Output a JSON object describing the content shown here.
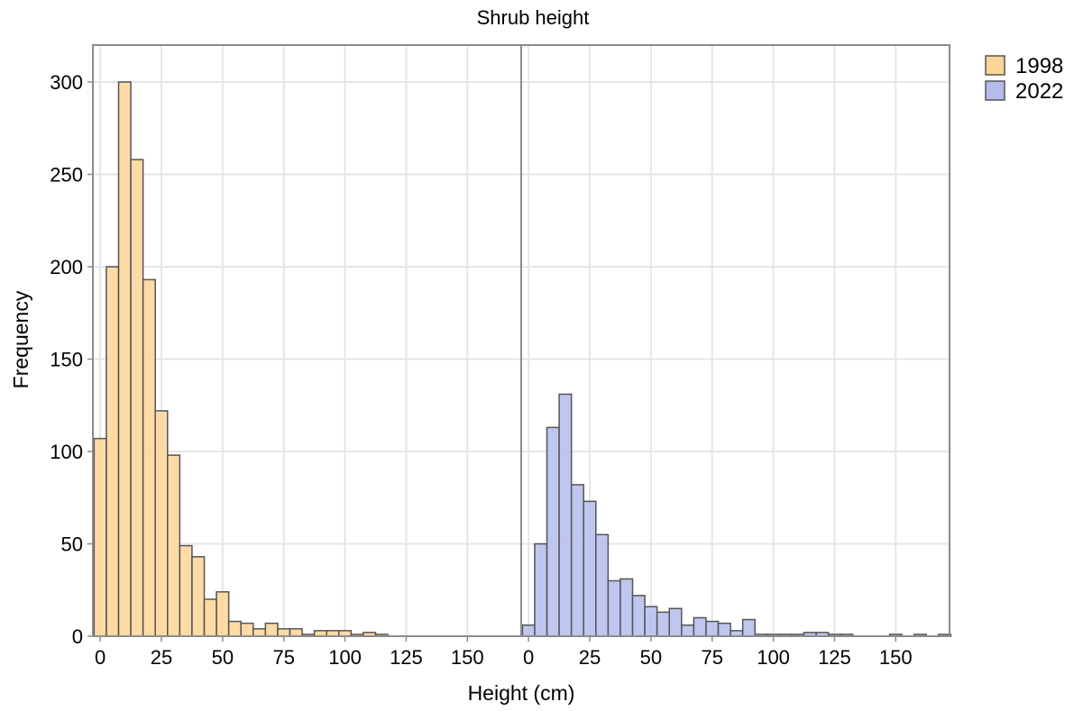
{
  "chart_data": {
    "type": "bar",
    "title": "Shrub height",
    "xlabel": "Height (cm)",
    "ylabel": "Frequency",
    "ylim": [
      0,
      320
    ],
    "xlim": [
      -3,
      172
    ],
    "bin_width": 5,
    "x_ticks": [
      0,
      25,
      50,
      75,
      100,
      125,
      150
    ],
    "y_ticks": [
      0,
      50,
      100,
      150,
      200,
      250,
      300
    ],
    "grid": true,
    "legend_position": "right-top",
    "series": [
      {
        "name": "1998",
        "color": "#fdd598",
        "bin_starts": [
          -2.5,
          2.5,
          7.5,
          12.5,
          17.5,
          22.5,
          27.5,
          32.5,
          37.5,
          42.5,
          47.5,
          52.5,
          57.5,
          62.5,
          67.5,
          72.5,
          77.5,
          82.5,
          87.5,
          92.5,
          97.5,
          102.5,
          107.5,
          112.5
        ],
        "values": [
          107,
          200,
          300,
          258,
          193,
          122,
          98,
          49,
          43,
          20,
          24,
          8,
          7,
          4,
          7,
          4,
          4,
          1,
          3,
          3,
          3,
          1,
          2,
          1
        ]
      },
      {
        "name": "2022",
        "color": "#b4bcec",
        "bin_starts": [
          -2.5,
          2.5,
          7.5,
          12.5,
          17.5,
          22.5,
          27.5,
          32.5,
          37.5,
          42.5,
          47.5,
          52.5,
          57.5,
          62.5,
          67.5,
          72.5,
          77.5,
          82.5,
          87.5,
          92.5,
          97.5,
          102.5,
          107.5,
          112.5,
          117.5,
          122.5,
          127.5,
          147.5,
          157.5,
          167.5
        ],
        "values": [
          6,
          50,
          113,
          131,
          82,
          73,
          55,
          30,
          31,
          22,
          16,
          13,
          15,
          6,
          10,
          8,
          7,
          3,
          9,
          1,
          1,
          1,
          1,
          2,
          2,
          1,
          1,
          1,
          1,
          1
        ]
      }
    ]
  }
}
